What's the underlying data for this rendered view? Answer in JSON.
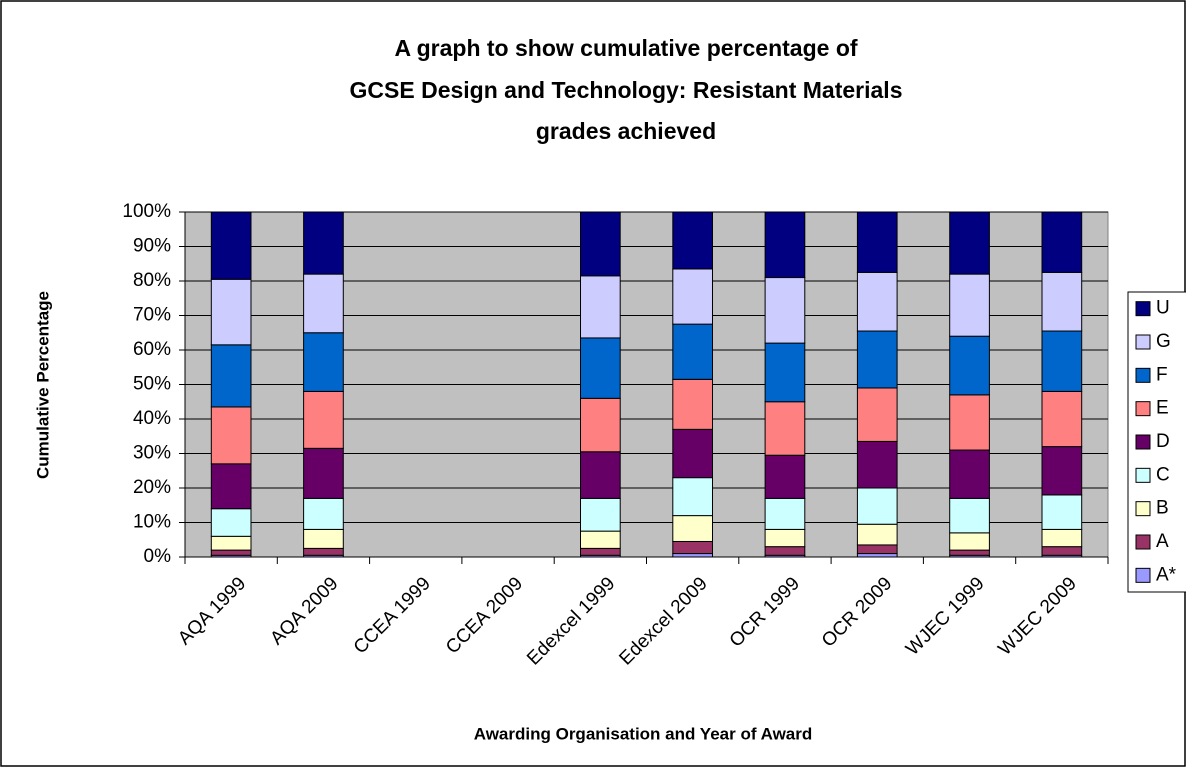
{
  "chart_data": {
    "type": "stacked_bar",
    "title": [
      "A graph to show cumulative percentage of",
      "GCSE Design and Technology: Resistant Materials",
      "grades achieved"
    ],
    "x_label": "Awarding Organisation and Year of Award",
    "y_label": "Cumulative Percentage",
    "categories": [
      "AQA 1999",
      "AQA 2009",
      "CCEA 1999",
      "CCEA 2009",
      "Edexcel 1999",
      "Edexcel 2009",
      "OCR 1999",
      "OCR 2009",
      "WJEC 1999",
      "WJEC 2009"
    ],
    "series": [
      {
        "name": "A*",
        "color": "#9999ff",
        "values": [
          0.5,
          0.5,
          null,
          null,
          0.5,
          1,
          0.5,
          1,
          0.5,
          0.5
        ]
      },
      {
        "name": "A",
        "color": "#993366",
        "values": [
          1.5,
          2,
          null,
          null,
          2,
          3.5,
          2.5,
          2.5,
          1.5,
          2.5
        ]
      },
      {
        "name": "B",
        "color": "#ffffcc",
        "values": [
          4,
          5.5,
          null,
          null,
          5,
          7.5,
          5,
          6,
          5,
          5
        ]
      },
      {
        "name": "C",
        "color": "#ccffff",
        "values": [
          8,
          9,
          null,
          null,
          9.5,
          11,
          9,
          10.5,
          10,
          10
        ]
      },
      {
        "name": "D",
        "color": "#660066",
        "values": [
          13,
          14.5,
          null,
          null,
          13.5,
          14,
          12.5,
          13.5,
          14,
          14
        ]
      },
      {
        "name": "E",
        "color": "#ff8080",
        "values": [
          16.5,
          16.5,
          null,
          null,
          15.5,
          14.5,
          15.5,
          15.5,
          16,
          16
        ]
      },
      {
        "name": "F",
        "color": "#0066cc",
        "values": [
          18,
          17,
          null,
          null,
          17.5,
          16,
          17,
          16.5,
          17,
          17.5
        ]
      },
      {
        "name": "G",
        "color": "#ccccff",
        "values": [
          19,
          17,
          null,
          null,
          18,
          16,
          19,
          17,
          18,
          17
        ]
      },
      {
        "name": "U",
        "color": "#000080",
        "values": [
          19.5,
          18,
          null,
          null,
          18.5,
          16.5,
          19,
          17.5,
          18,
          17.5
        ]
      }
    ],
    "ylim": [
      0,
      100
    ],
    "yticks": [
      {
        "value": 0,
        "label": "0%"
      },
      {
        "value": 10,
        "label": "10%"
      },
      {
        "value": 20,
        "label": "20%"
      },
      {
        "value": 30,
        "label": "30%"
      },
      {
        "value": 40,
        "label": "40%"
      },
      {
        "value": 50,
        "label": "50%"
      },
      {
        "value": 60,
        "label": "60%"
      },
      {
        "value": 70,
        "label": "70%"
      },
      {
        "value": 80,
        "label": "80%"
      },
      {
        "value": 90,
        "label": "90%"
      },
      {
        "value": 100,
        "label": "100%"
      }
    ],
    "grid": true,
    "legend": "right"
  }
}
